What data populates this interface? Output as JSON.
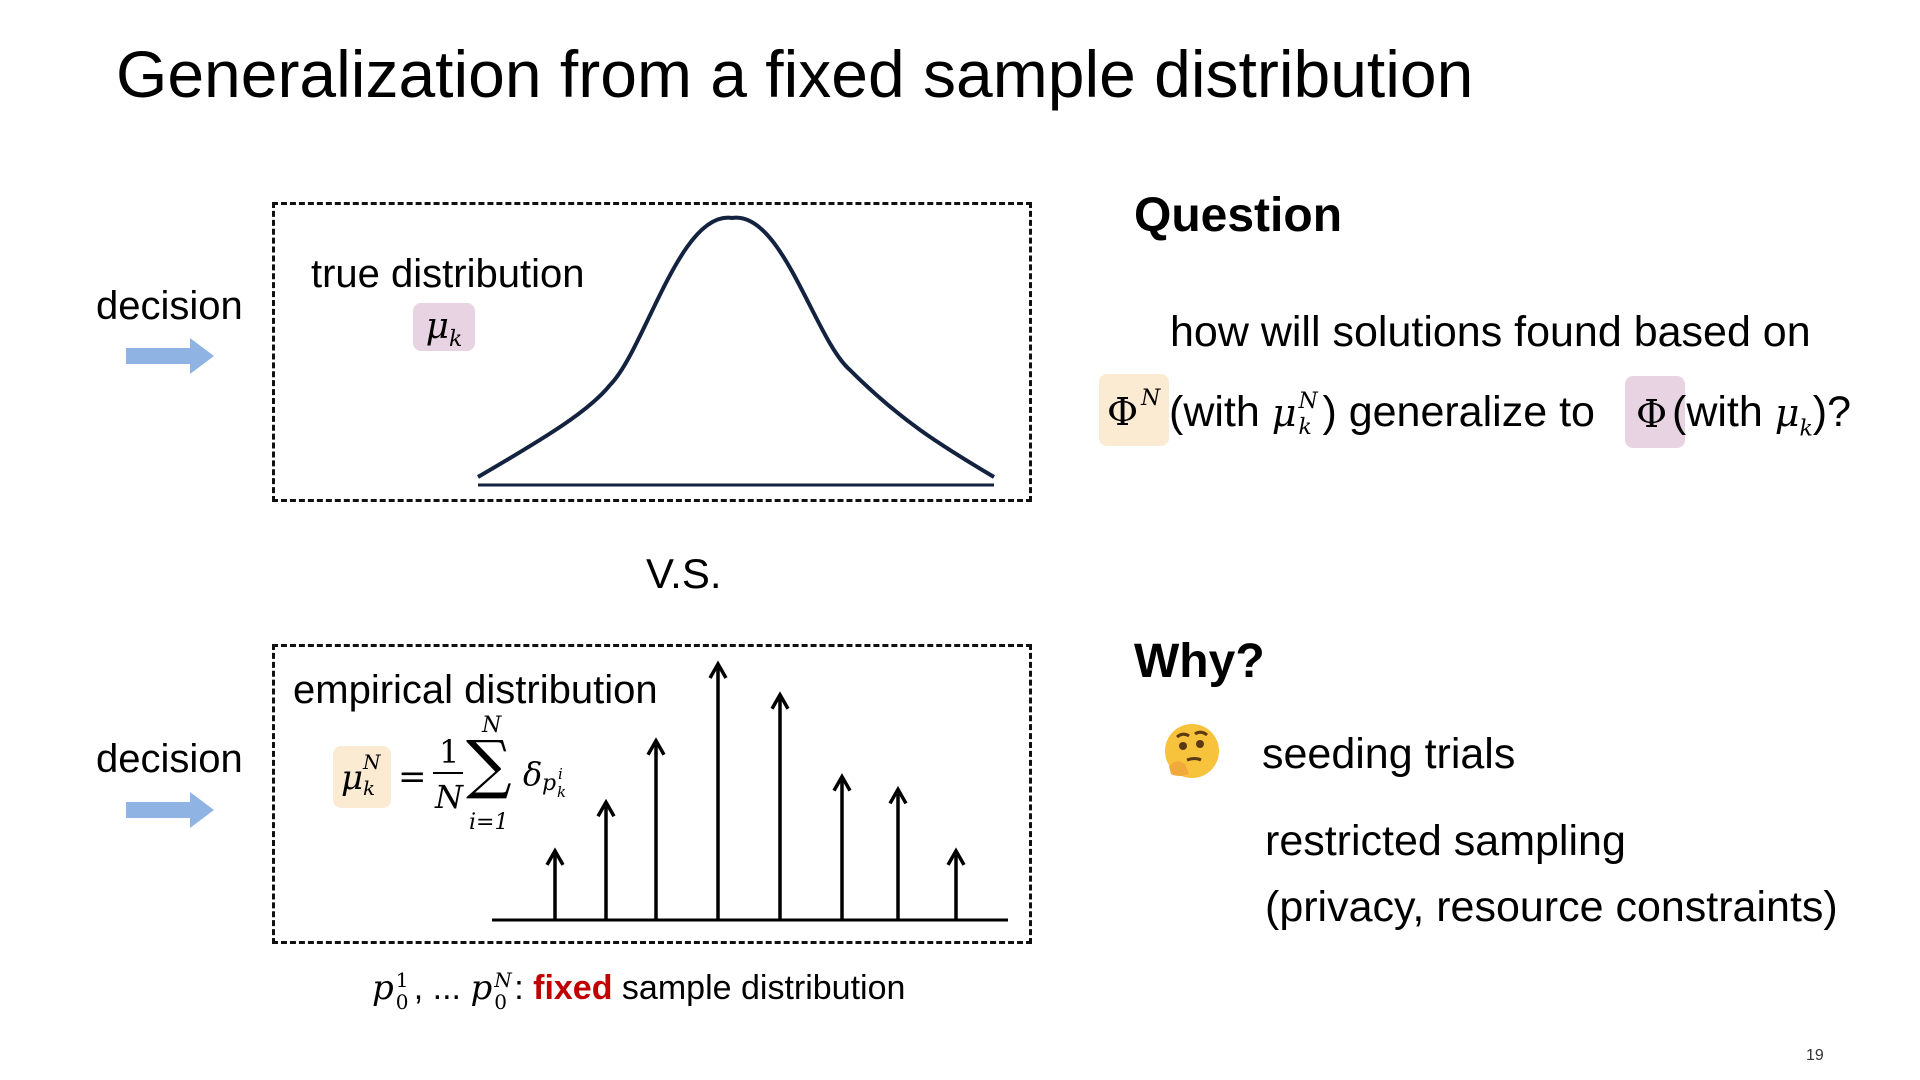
{
  "slide": {
    "title": "Generalization from a fixed sample distribution",
    "page_number": "19"
  },
  "top_panel": {
    "decision_label": "decision",
    "distribution_label": "true distribution",
    "measure_symbol": "μ",
    "measure_sub": "k"
  },
  "vs_label": "V.S.",
  "bottom_panel": {
    "decision_label": "decision",
    "distribution_label": "empirical distribution",
    "formula": {
      "lhs_symbol": "μ",
      "lhs_sub": "k",
      "lhs_sup": "N",
      "equals": "=",
      "frac_num": "1",
      "frac_den": "N",
      "sum_sign": "∑",
      "sum_upper": "N",
      "sum_lower": "i=1",
      "delta": "δ",
      "delta_p": "p",
      "delta_p_sup": "i",
      "delta_p_sub": "k"
    },
    "spikes": [
      0.27,
      0.46,
      0.7,
      1.0,
      0.88,
      0.56,
      0.51,
      0.27
    ]
  },
  "caption": {
    "p": "p",
    "sup1": "1",
    "sub1": "0",
    "ellipsis": ", ... ",
    "supN": "N",
    "sub2": "0",
    "colon": ": ",
    "fixed_word": "fixed",
    "rest": " sample distribution"
  },
  "question": {
    "heading": "Question",
    "line1": "how will solutions found based on",
    "phi": "Φ",
    "phi_sup": "N",
    "with1_open": " (with ",
    "mu": "μ",
    "mu_sub": "k",
    "mu_sup": "N",
    "with1_close": ") generalize to ",
    "phi2": "Φ",
    "with2_open": " (with ",
    "mu2": "μ",
    "mu2_sub": "k",
    "with2_close": ")?"
  },
  "why": {
    "heading": "Why?",
    "emoji": "🤔",
    "item1": "seeding trials",
    "item2": "restricted sampling",
    "item3": "(privacy, resource constraints)"
  },
  "colors": {
    "arrow": "#8fb4e3",
    "curve": "#12223f",
    "highlight_beige": "#faebd2",
    "highlight_pink": "#e8d3e2",
    "fixed_red": "#c00000"
  }
}
